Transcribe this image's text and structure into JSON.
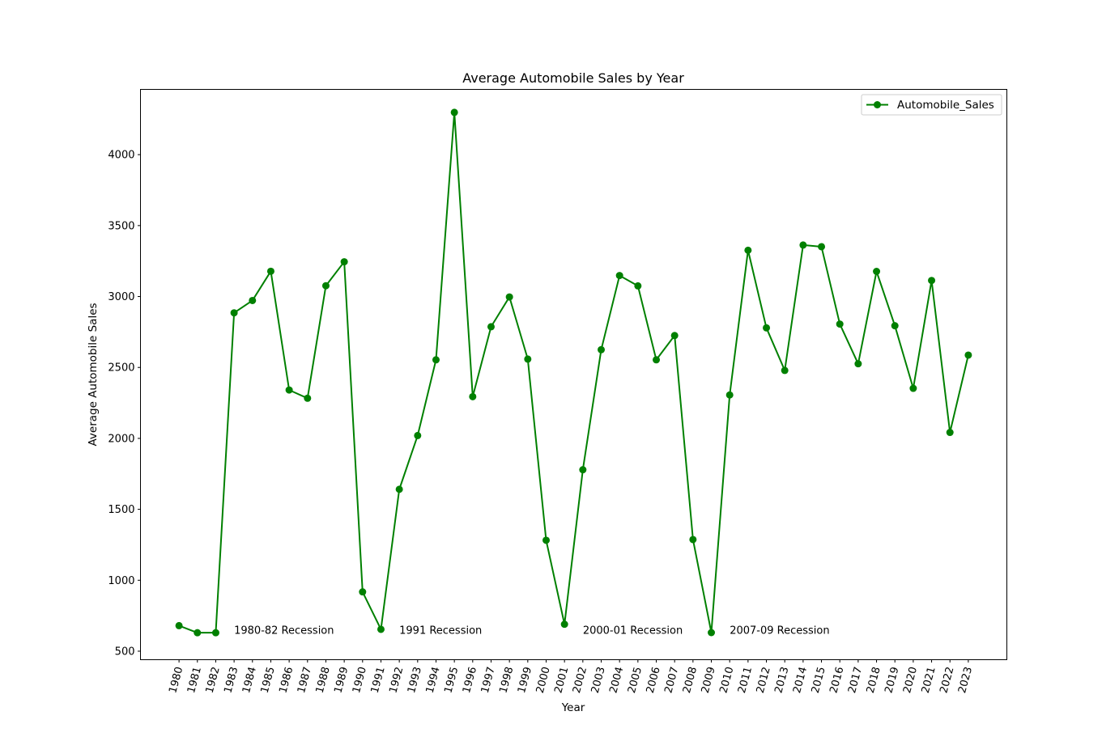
{
  "chart_data": {
    "type": "line",
    "title": "Average Automobile Sales by Year",
    "xlabel": "Year",
    "ylabel": "Average Automobile Sales",
    "x": [
      1980,
      1981,
      1982,
      1983,
      1984,
      1985,
      1986,
      1987,
      1988,
      1989,
      1990,
      1991,
      1992,
      1993,
      1994,
      1995,
      1996,
      1997,
      1998,
      1999,
      2000,
      2001,
      2002,
      2003,
      2004,
      2005,
      2006,
      2007,
      2008,
      2009,
      2010,
      2011,
      2012,
      2013,
      2014,
      2015,
      2016,
      2017,
      2018,
      2019,
      2020,
      2021,
      2022,
      2023
    ],
    "series": [
      {
        "name": "Automobile_Sales",
        "color": "#008000",
        "marker": "circle",
        "values": [
          680,
          630,
          630,
          2885,
          2972,
          3178,
          2341,
          2283,
          3076,
          3245,
          918,
          654,
          1641,
          2020,
          2554,
          4298,
          2294,
          2787,
          2997,
          2559,
          1282,
          690,
          1779,
          2625,
          3148,
          3075,
          2554,
          2725,
          1287,
          631,
          2306,
          3326,
          2779,
          2479,
          3363,
          3351,
          2806,
          2526,
          3177,
          2794,
          2353,
          3113,
          2042,
          2587
        ]
      }
    ],
    "yticks": [
      500,
      1000,
      1500,
      2000,
      2500,
      3000,
      3500,
      4000
    ],
    "ylim": [
      440,
      4460
    ],
    "xlim": [
      1977.9,
      2025.1
    ],
    "legend": {
      "position": "top-right",
      "label": "Automobile_Sales"
    },
    "grid": false,
    "annotations": [
      {
        "text": "1980-82 Recession",
        "x": 1983,
        "y": 650
      },
      {
        "text": "1991 Recession",
        "x": 1992,
        "y": 650
      },
      {
        "text": "2000-01 Recession",
        "x": 2002,
        "y": 650
      },
      {
        "text": "2007-09 Recession",
        "x": 2010,
        "y": 650
      }
    ]
  }
}
